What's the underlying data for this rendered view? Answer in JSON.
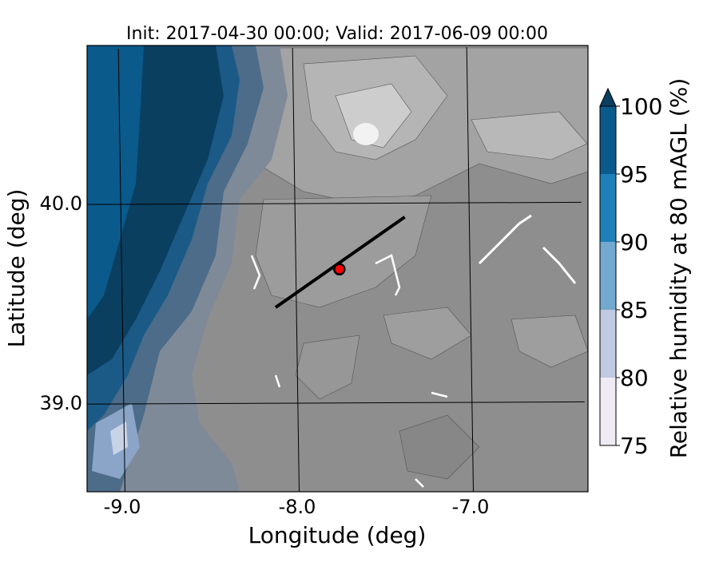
{
  "title": "Init: 2017-04-30 00:00; Valid: 2017-06-09 00:00",
  "xlabel": "Longitude (deg)",
  "ylabel": "Latitude (deg)",
  "x_ticks": [
    "-9.0",
    "-8.0",
    "-7.0"
  ],
  "y_ticks": [
    "40.0",
    "39.0"
  ],
  "colorbar": {
    "label": "Relative humidity at 80 mAGL (%)",
    "ticks": [
      "75",
      "80",
      "85",
      "90",
      "95",
      "100"
    ],
    "colors": [
      "#efeaf3",
      "#bfc9e1",
      "#74a9cf",
      "#1f7fb8",
      "#0a5a8c",
      "#0b3f60"
    ],
    "extend": "max"
  },
  "colors": {
    "terrain_gray": "#8f8f8f",
    "terrain_light": "#c9c9c9",
    "humid_dark": "#0b3f60",
    "humid_mid": "#0a5a8c",
    "marker": "#ff0000"
  },
  "map_data": {
    "graticule_longitudes": [
      -9.0,
      -8.0,
      -7.0
    ],
    "graticule_latitudes": [
      40.0,
      39.0
    ],
    "cross_section_line": [
      [
        -8.12,
        39.48
      ],
      [
        -7.37,
        39.93
      ]
    ],
    "point_marker": [
      -7.75,
      39.67
    ]
  }
}
